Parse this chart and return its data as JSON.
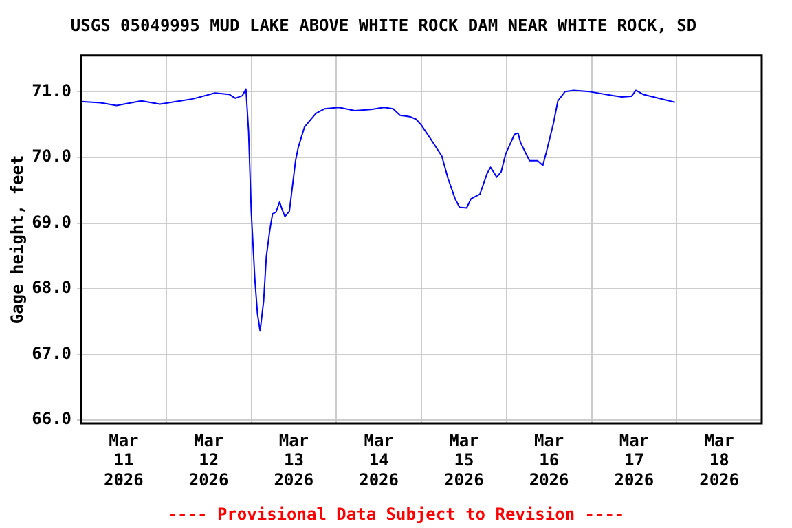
{
  "chart_data": {
    "type": "line",
    "title": "USGS 05049995 MUD LAKE ABOVE WHITE ROCK DAM NEAR WHITE ROCK, SD",
    "ylabel": "Gage height, feet",
    "annotations": [
      "---- Provisional Data Subject to Revision ----"
    ],
    "x": [
      "2026-03-11T00:00",
      "2026-03-11T05:30",
      "2026-03-11T10:00",
      "2026-03-11T17:00",
      "2026-03-11T22:15",
      "2026-03-12T07:30",
      "2026-03-12T13:45",
      "2026-03-12T17:45",
      "2026-03-12T19:30",
      "2026-03-12T21:30",
      "2026-03-12T22:30",
      "2026-03-12T23:15",
      "2026-03-13T00:00",
      "2026-03-13T01:00",
      "2026-03-13T01:45",
      "2026-03-13T02:30",
      "2026-03-13T03:30",
      "2026-03-13T04:15",
      "2026-03-13T05:15",
      "2026-03-13T06:00",
      "2026-03-13T07:00",
      "2026-03-13T08:00",
      "2026-03-13T08:45",
      "2026-03-13T09:30",
      "2026-03-13T10:45",
      "2026-03-13T11:30",
      "2026-03-13T12:30",
      "2026-03-13T13:15",
      "2026-03-13T15:00",
      "2026-03-13T18:15",
      "2026-03-13T20:45",
      "2026-03-14T00:45",
      "2026-03-14T05:15",
      "2026-03-14T09:45",
      "2026-03-14T13:30",
      "2026-03-14T16:00",
      "2026-03-14T18:00",
      "2026-03-14T20:45",
      "2026-03-14T22:30",
      "2026-03-15T00:00",
      "2026-03-15T02:30",
      "2026-03-15T05:45",
      "2026-03-15T07:30",
      "2026-03-15T09:30",
      "2026-03-15T10:45",
      "2026-03-15T12:45",
      "2026-03-15T14:00",
      "2026-03-15T16:30",
      "2026-03-15T18:30",
      "2026-03-15T19:30",
      "2026-03-15T21:15",
      "2026-03-15T22:30",
      "2026-03-15T23:45",
      "2026-03-16T02:15",
      "2026-03-16T03:15",
      "2026-03-16T04:00",
      "2026-03-16T06:30",
      "2026-03-16T08:45",
      "2026-03-16T10:15",
      "2026-03-16T11:15",
      "2026-03-16T13:15",
      "2026-03-16T14:30",
      "2026-03-16T16:30",
      "2026-03-16T19:00",
      "2026-03-16T23:30",
      "2026-03-17T06:00",
      "2026-03-17T08:30",
      "2026-03-17T11:15",
      "2026-03-17T12:30",
      "2026-03-17T14:30",
      "2026-03-17T19:00",
      "2026-03-17T23:30"
    ],
    "series": [
      {
        "color": "#0000ff",
        "values": [
          70.85,
          70.83,
          70.79,
          70.86,
          70.81,
          70.89,
          70.98,
          70.96,
          70.9,
          70.94,
          71.04,
          70.39,
          69.17,
          68.16,
          67.62,
          67.36,
          67.82,
          68.49,
          68.9,
          69.14,
          69.17,
          69.32,
          69.2,
          69.1,
          69.18,
          69.51,
          69.95,
          70.15,
          70.46,
          70.67,
          70.74,
          70.76,
          70.71,
          70.73,
          70.76,
          70.74,
          70.64,
          70.62,
          70.58,
          70.49,
          70.29,
          70.02,
          69.68,
          69.37,
          69.24,
          69.23,
          69.37,
          69.44,
          69.75,
          69.85,
          69.7,
          69.78,
          70.05,
          70.35,
          70.37,
          70.22,
          69.95,
          69.95,
          69.88,
          70.08,
          70.52,
          70.86,
          71.0,
          71.02,
          71.0,
          70.94,
          70.92,
          70.93,
          71.02,
          70.96,
          70.9,
          70.84
        ]
      }
    ],
    "xlim": [
      "2026-03-11T00:00",
      "2026-03-19T00:00"
    ],
    "xticks": [
      {
        "value": "2026-03-11T12:00",
        "label": "Mar 11 2026"
      },
      {
        "value": "2026-03-12T00:00",
        "label": null
      },
      {
        "value": "2026-03-12T12:00",
        "label": "Mar 12 2026"
      },
      {
        "value": "2026-03-13T00:00",
        "label": null
      },
      {
        "value": "2026-03-13T12:00",
        "label": "Mar 13 2026"
      },
      {
        "value": "2026-03-14T00:00",
        "label": null
      },
      {
        "value": "2026-03-14T12:00",
        "label": "Mar 14 2026"
      },
      {
        "value": "2026-03-15T00:00",
        "label": null
      },
      {
        "value": "2026-03-15T12:00",
        "label": "Mar 15 2026"
      },
      {
        "value": "2026-03-16T00:00",
        "label": null
      },
      {
        "value": "2026-03-16T12:00",
        "label": "Mar 16 2026"
      },
      {
        "value": "2026-03-17T00:00",
        "label": null
      },
      {
        "value": "2026-03-17T12:00",
        "label": "Mar 17 2026"
      },
      {
        "value": "2026-03-18T00:00",
        "label": null
      },
      {
        "value": "2026-03-18T12:00",
        "label": "Mar 18 2026"
      }
    ],
    "ylim": [
      65.95,
      71.55
    ],
    "yticks": [
      {
        "value": 66,
        "label": "66.0"
      },
      {
        "value": 67,
        "label": "67.0"
      },
      {
        "value": 68,
        "label": "68.0"
      },
      {
        "value": 69,
        "label": "69.0"
      },
      {
        "value": 70,
        "label": "70.0"
      },
      {
        "value": 71,
        "label": "71.0"
      }
    ],
    "grid": true,
    "marker": "none",
    "line_style": "solid"
  }
}
